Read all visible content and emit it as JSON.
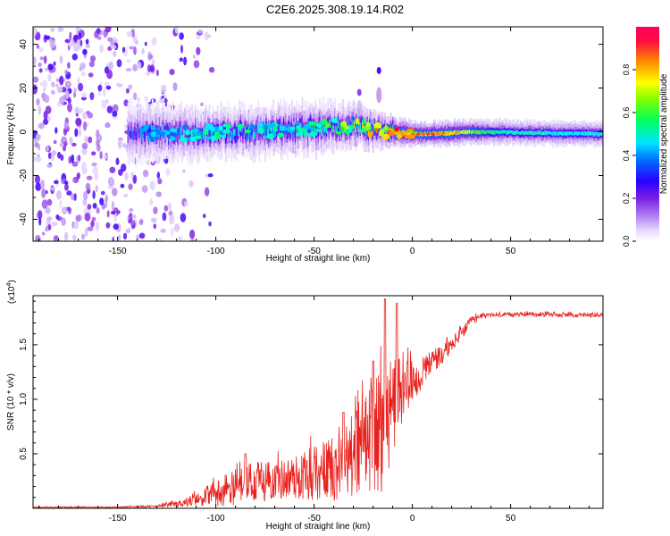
{
  "figure_title": "C2E6.2025.308.19.14.R02",
  "colors": {
    "snr_line": "#e8231f",
    "frame": "#000000",
    "background": "#ffffff"
  },
  "chart_data": [
    {
      "type": "heatmap",
      "title": "",
      "xlabel": "Height of straight line (km)",
      "ylabel": "Frequency (Hz)",
      "xlim": [
        -193,
        97
      ],
      "ylim": [
        -50,
        48
      ],
      "x_ticks": [
        -150,
        -100,
        -50,
        0,
        50
      ],
      "x_tick_labels": [
        "-150",
        "-100",
        "-50",
        "0",
        "50"
      ],
      "y_ticks": [
        -40,
        -20,
        0,
        20,
        40
      ],
      "y_tick_labels": [
        "-40",
        "-20",
        "0",
        "20",
        "40"
      ],
      "colorbar": {
        "label": "Normalized spectral amplitude",
        "range": [
          0,
          1
        ],
        "ticks": [
          0.0,
          0.2,
          0.4,
          0.6,
          0.8
        ],
        "tick_labels": [
          "0.0",
          "0.2",
          "0.4",
          "0.6",
          "0.8"
        ],
        "colormap": [
          "#ffffff",
          "#c9a9f5",
          "#8a2be2",
          "#3a00ff",
          "#0080ff",
          "#00ffff",
          "#00ff40",
          "#ffff00",
          "#ff8000",
          "#ff0030"
        ]
      },
      "features": {
        "noise_region_x": [
          -193,
          -110
        ],
        "noise_amplitude_range": [
          0.05,
          0.35
        ],
        "onset_x": -145,
        "band_center_hz": [
          [
            -145,
            0
          ],
          [
            -120,
            -1
          ],
          [
            -100,
            0
          ],
          [
            -80,
            0
          ],
          [
            -60,
            1
          ],
          [
            -45,
            2
          ],
          [
            -30,
            3
          ],
          [
            -20,
            1
          ],
          [
            -10,
            0
          ],
          [
            0,
            -1
          ],
          [
            10,
            -1
          ],
          [
            30,
            0
          ],
          [
            97,
            -1
          ]
        ],
        "band_peak_amplitude": [
          [
            -145,
            0.35
          ],
          [
            -120,
            0.45
          ],
          [
            -100,
            0.5
          ],
          [
            -70,
            0.5
          ],
          [
            -40,
            0.55
          ],
          [
            -20,
            0.7
          ],
          [
            -10,
            0.85
          ],
          [
            0,
            0.75
          ],
          [
            20,
            0.8
          ],
          [
            50,
            0.6
          ],
          [
            97,
            0.55
          ]
        ],
        "band_half_width_hz": [
          [
            -145,
            6
          ],
          [
            -100,
            5
          ],
          [
            -50,
            5
          ],
          [
            -25,
            4
          ],
          [
            -10,
            3
          ],
          [
            0,
            2.5
          ],
          [
            97,
            2.5
          ]
        ],
        "spikes": [
          {
            "x": -27,
            "y_hz": 18,
            "amplitude": 0.2
          },
          {
            "x": -17,
            "y_hz": 28,
            "amplitude": 0.3
          }
        ]
      }
    },
    {
      "type": "line",
      "title": "",
      "xlabel": "Height of straight line (km)",
      "ylabel": "SNR (10 * v/v)",
      "y_multiplier_label": "(x10",
      "y_multiplier_exp": "4",
      "y_multiplier_close": ")",
      "xlim": [
        -193,
        97
      ],
      "ylim": [
        0,
        1.95
      ],
      "x_ticks": [
        -150,
        -100,
        -50,
        0,
        50
      ],
      "x_tick_labels": [
        "-150",
        "-100",
        "-50",
        "0",
        "50"
      ],
      "y_ticks": [
        0.5,
        1.0,
        1.5
      ],
      "y_tick_labels": [
        "0.5",
        "1.0",
        "1.5"
      ],
      "series": [
        {
          "name": "SNR",
          "color": "#e8231f",
          "envelope_x": [
            -193,
            -150,
            -130,
            -120,
            -110,
            -100,
            -90,
            -80,
            -70,
            -60,
            -50,
            -40,
            -30,
            -25,
            -20,
            -15,
            -10,
            -5,
            0,
            5,
            10,
            15,
            20,
            25,
            30,
            35,
            40,
            60,
            80,
            97
          ],
          "envelope_mean": [
            0.01,
            0.01,
            0.02,
            0.04,
            0.08,
            0.14,
            0.2,
            0.24,
            0.26,
            0.28,
            0.32,
            0.38,
            0.5,
            0.6,
            0.65,
            0.75,
            0.95,
            1.1,
            1.15,
            1.25,
            1.35,
            1.4,
            1.5,
            1.6,
            1.72,
            1.76,
            1.77,
            1.78,
            1.77,
            1.77
          ],
          "envelope_amplitude": [
            0.005,
            0.005,
            0.01,
            0.03,
            0.06,
            0.12,
            0.18,
            0.18,
            0.18,
            0.2,
            0.25,
            0.32,
            0.4,
            0.45,
            0.5,
            0.6,
            0.45,
            0.3,
            0.2,
            0.15,
            0.12,
            0.1,
            0.08,
            0.06,
            0.04,
            0.03,
            0.02,
            0.02,
            0.02,
            0.02
          ],
          "peaks": [
            {
              "x": -85,
              "y": 0.5
            },
            {
              "x": -35,
              "y": 0.88
            },
            {
              "x": -20,
              "y": 1.35
            },
            {
              "x": -14,
              "y": 1.92
            },
            {
              "x": -8,
              "y": 1.88
            }
          ]
        }
      ]
    }
  ]
}
